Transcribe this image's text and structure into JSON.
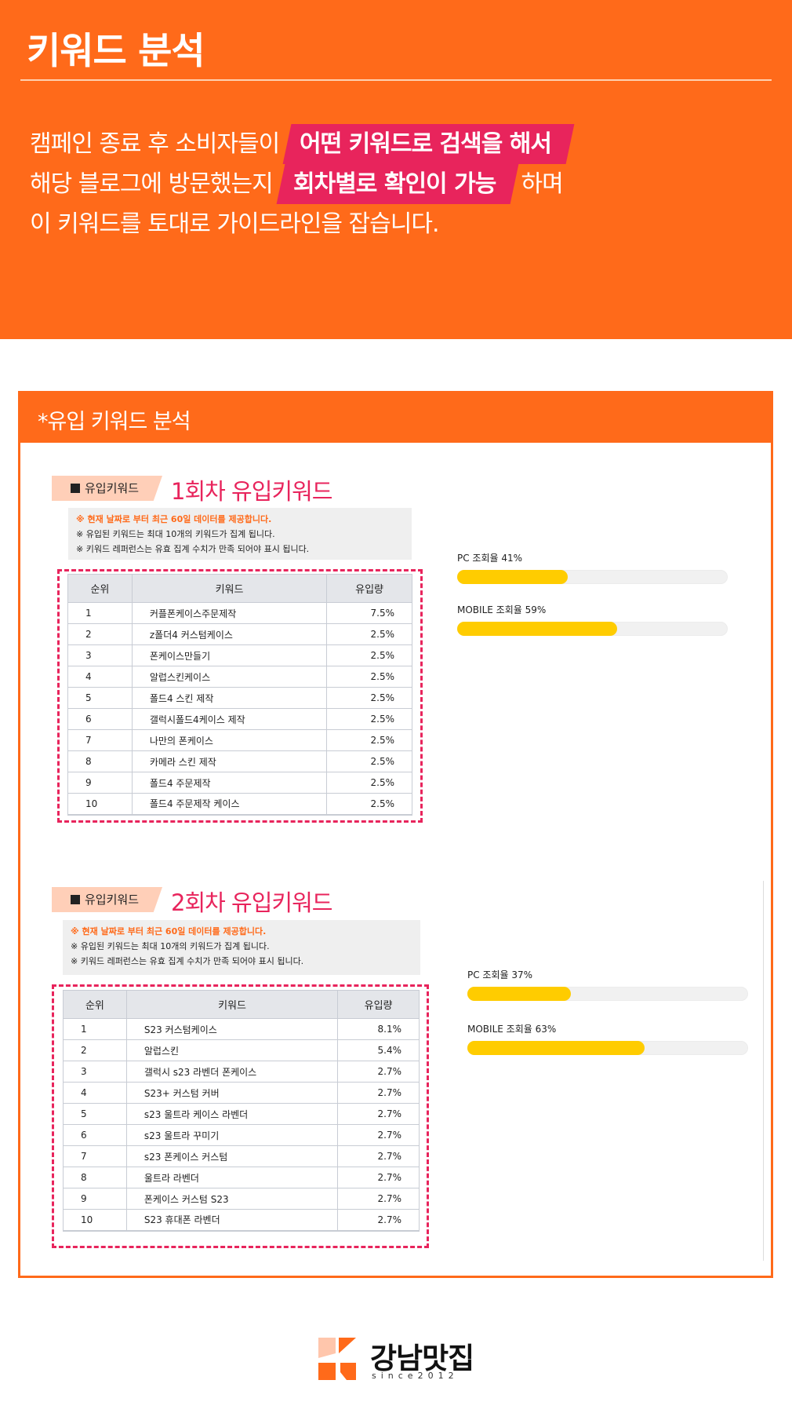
{
  "colors": {
    "orange": "#ff6a1a",
    "pink": "#e8245c",
    "bar_fill": "#ffcc00"
  },
  "hero": {
    "title": "키워드 분석",
    "line1_text": "캠페인 종료 후 소비자들이",
    "line1_highlight": "어떤 키워드로 검색을 해서",
    "line2_text": "해당 블로그에 방문했는지",
    "line2_highlight": "회차별로 확인이 가능",
    "line2_tail": "하며",
    "line3_text": "이 키워드를 토대로 가이드라인을 잡습니다."
  },
  "analysis": {
    "title": "*유입 키워드 분석",
    "table_headers": {
      "rank": "순위",
      "keyword": "키워드",
      "inflow": "유입량"
    },
    "rounds": [
      {
        "tag": "유입키워드",
        "title": "1회차 유입키워드",
        "notices": [
          "※ 현재 날짜로 부터 최근 60일 데이터를 제공합니다.",
          "※ 유입된 키워드는 최대 10개의 키워드가 집계 됩니다.",
          "※ 키워드 레퍼런스는 유효 집계 수치가 만족 되어야 표시 됩니다."
        ],
        "rows": [
          {
            "rank": "1",
            "keyword": "커플폰케이스주문제작",
            "inflow": "7.5%"
          },
          {
            "rank": "2",
            "keyword": "z폴더4 커스텀케이스",
            "inflow": "2.5%"
          },
          {
            "rank": "3",
            "keyword": "폰케이스만들기",
            "inflow": "2.5%"
          },
          {
            "rank": "4",
            "keyword": "알럽스킨케이스",
            "inflow": "2.5%"
          },
          {
            "rank": "5",
            "keyword": "폴드4 스킨 제작",
            "inflow": "2.5%"
          },
          {
            "rank": "6",
            "keyword": "갤럭시폴드4케이스 제작",
            "inflow": "2.5%"
          },
          {
            "rank": "7",
            "keyword": "나만의 폰케이스",
            "inflow": "2.5%"
          },
          {
            "rank": "8",
            "keyword": "카메라 스킨 제작",
            "inflow": "2.5%"
          },
          {
            "rank": "9",
            "keyword": "폴드4 주문제작",
            "inflow": "2.5%"
          },
          {
            "rank": "10",
            "keyword": "폴드4 주문제작 케이스",
            "inflow": "2.5%"
          }
        ],
        "pc_label": "PC 조회율 41%",
        "pc_value": 41,
        "mobile_label": "MOBILE 조회율 59%",
        "mobile_value": 59
      },
      {
        "tag": "유입키워드",
        "title": "2회차 유입키워드",
        "notices": [
          "※ 현재 날짜로 부터 최근 60일 데이터를 제공합니다.",
          "※ 유입된 키워드는 최대 10개의 키워드가 집계 됩니다.",
          "※ 키워드 레퍼런스는 유효 집계 수치가 만족 되어야 표시 됩니다."
        ],
        "rows": [
          {
            "rank": "1",
            "keyword": "S23 커스텀케이스",
            "inflow": "8.1%"
          },
          {
            "rank": "2",
            "keyword": "알럽스킨",
            "inflow": "5.4%"
          },
          {
            "rank": "3",
            "keyword": "갤럭시 s23 라벤더 폰케이스",
            "inflow": "2.7%"
          },
          {
            "rank": "4",
            "keyword": "S23+ 커스텀 커버",
            "inflow": "2.7%"
          },
          {
            "rank": "5",
            "keyword": "s23 울트라 케이스 라벤더",
            "inflow": "2.7%"
          },
          {
            "rank": "6",
            "keyword": "s23 울트라 꾸미기",
            "inflow": "2.7%"
          },
          {
            "rank": "7",
            "keyword": "s23 폰케이스 커스텀",
            "inflow": "2.7%"
          },
          {
            "rank": "8",
            "keyword": "울트라 라벤더",
            "inflow": "2.7%"
          },
          {
            "rank": "9",
            "keyword": "폰케이스 커스텀 S23",
            "inflow": "2.7%"
          },
          {
            "rank": "10",
            "keyword": "S23 휴대폰 라벤더",
            "inflow": "2.7%"
          }
        ],
        "pc_label": "PC 조회율 37%",
        "pc_value": 37,
        "mobile_label": "MOBILE 조회율 63%",
        "mobile_value": 63
      }
    ]
  },
  "logo": {
    "name": "강남맛집",
    "since": "since2012"
  }
}
